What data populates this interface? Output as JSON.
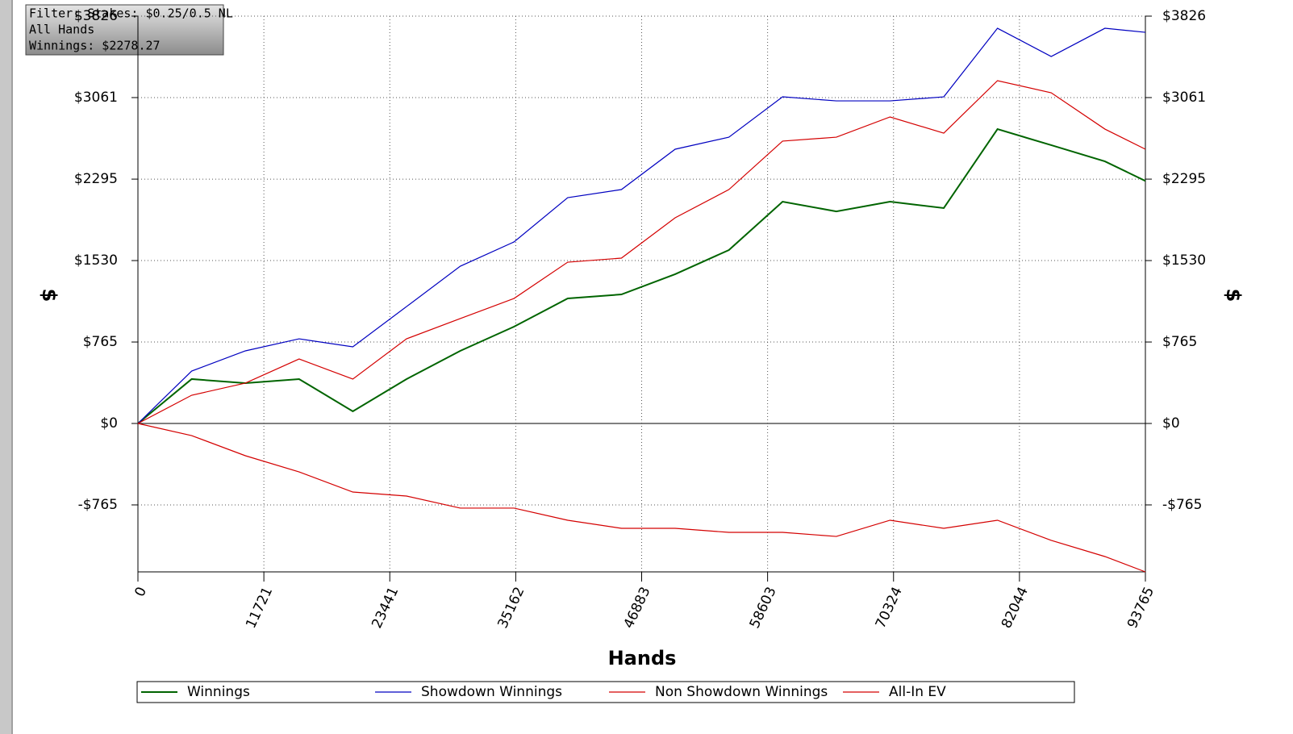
{
  "filter_box": {
    "lines": [
      "Filter: Stakes: $0.25/0.5 NL",
      "All Hands",
      "Winnings: $2278.27"
    ]
  },
  "chart_data": {
    "type": "line",
    "x_label": "Hands",
    "y_label": "$",
    "x": [
      0,
      5000,
      10000,
      15000,
      20000,
      25000,
      30000,
      35000,
      40000,
      45000,
      50000,
      55000,
      60000,
      65000,
      70000,
      75000,
      80000,
      85000,
      90000,
      93765
    ],
    "series": [
      {
        "name": "Winnings",
        "color": "#006400",
        "values": [
          0,
          417,
          379,
          417,
          114,
          417,
          682,
          909,
          1174,
          1212,
          1402,
          1629,
          2083,
          1992,
          2083,
          2023,
          2765,
          2614,
          2462,
          2278
        ]
      },
      {
        "name": "Showdown Winnings",
        "color": "#0000c0",
        "values": [
          0,
          492,
          682,
          795,
          720,
          1098,
          1477,
          1705,
          2121,
          2197,
          2576,
          2689,
          3068,
          3030,
          3030,
          3068,
          3712,
          3447,
          3712,
          3674
        ]
      },
      {
        "name": "Non Showdown Winnings",
        "color": "#d40000",
        "values": [
          0,
          265,
          379,
          606,
          417,
          795,
          985,
          1174,
          1515,
          1553,
          1932,
          2197,
          2652,
          2689,
          2879,
          2727,
          3220,
          3106,
          2765,
          2576
        ]
      },
      {
        "name": "All-In EV",
        "color": "#d40000",
        "values": [
          0,
          -114,
          -303,
          -455,
          -644,
          -682,
          -795,
          -795,
          -909,
          -985,
          -985,
          -1023,
          -1023,
          -1061,
          -909,
          -985,
          -909,
          -1098,
          -1250,
          -1394
        ]
      }
    ],
    "xlim": [
      0,
      93765
    ],
    "xticks": [
      0,
      11721,
      23441,
      35162,
      46883,
      58603,
      70324,
      82044,
      93765
    ],
    "ylim": [
      -1394,
      3826
    ],
    "yticks": [
      {
        "value": -765,
        "label": "-$765"
      },
      {
        "value": 0,
        "label": "$0"
      },
      {
        "value": 765,
        "label": "$765"
      },
      {
        "value": 1530,
        "label": "$1530"
      },
      {
        "value": 2295,
        "label": "$2295"
      },
      {
        "value": 3061,
        "label": "$3061"
      },
      {
        "value": 3826,
        "label": "$3826"
      }
    ],
    "grid": true
  }
}
